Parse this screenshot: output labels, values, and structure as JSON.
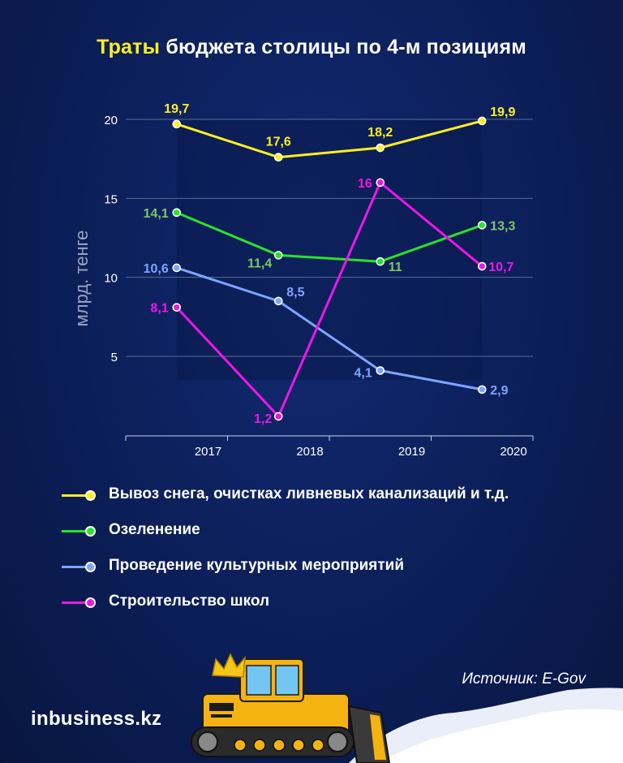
{
  "title": {
    "highlight": "Траты",
    "rest": "бюджета столицы по 4-м позициям"
  },
  "source": "Источник: E-Gov",
  "logo": {
    "prefix": "in",
    "rest": "business.kz"
  },
  "colors": {
    "background": "#0b1d55",
    "yellow": "#ffef1f",
    "green": "#27e32b",
    "blue": "#7fa4ff",
    "magenta": "#ee16e8"
  },
  "chart_data": {
    "type": "line",
    "ylabel": "млрд. тенге",
    "xlabel": "",
    "yticks": [
      5,
      10,
      15,
      20
    ],
    "xticks": [
      "2017",
      "2018",
      "2019",
      "2020"
    ],
    "ylim": [
      0,
      21
    ],
    "x_positions": [
      2016.5,
      2017.5,
      2018.5,
      2019.5
    ],
    "grid": true,
    "legend_position": "bottom",
    "series": [
      {
        "name": "Вывоз снега, очистках ливневых канализаций и т.д.",
        "color": "#ffef1f",
        "label_color": "#ffef1f",
        "values": [
          19.7,
          17.6,
          18.2,
          19.9
        ],
        "labels": [
          "19,7",
          "17,6",
          "18,2",
          "19,9"
        ]
      },
      {
        "name": "Озеленение",
        "color": "#27e32b",
        "label_color": "#7cc765",
        "values": [
          14.1,
          11.4,
          11.0,
          13.3
        ],
        "labels": [
          "14,1",
          "11,4",
          "11",
          "13,3"
        ]
      },
      {
        "name": "Проведение культурных мероприятий",
        "color": "#7fa4ff",
        "label_color": "#7fa4ff",
        "values": [
          10.6,
          8.5,
          4.1,
          2.9
        ],
        "labels": [
          "10,6",
          "8,5",
          "4,1",
          "2,9"
        ]
      },
      {
        "name": "Строительство школ",
        "color": "#ee16e8",
        "label_color": "#ee16e8",
        "values": [
          8.1,
          1.2,
          16.0,
          10.7
        ],
        "labels": [
          "8,1",
          "1,2",
          "16",
          "10,7"
        ]
      }
    ]
  }
}
